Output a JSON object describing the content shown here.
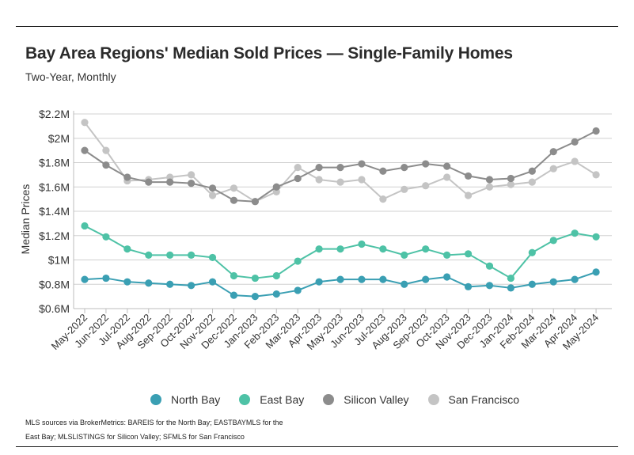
{
  "header": {
    "title": "Bay Area Regions' Median Sold Prices — Single-Family Homes",
    "subtitle": "Two-Year, Monthly"
  },
  "source_note": "MLS sources via BrokerMetrics: BAREIS for the North Bay; EASTBAYMLS for the East Bay; MLSLISTINGS for Silicon Valley; SFMLS for San Francisco",
  "chart_data": {
    "type": "line",
    "title": "Bay Area Regions' Median Sold Prices — Single-Family Homes",
    "subtitle": "Two-Year, Monthly",
    "xlabel": "",
    "ylabel": "Median Prices",
    "ylim": [
      0.6,
      2.2
    ],
    "y_ticks": [
      0.6,
      0.8,
      1.0,
      1.2,
      1.4,
      1.6,
      1.8,
      2.0,
      2.2
    ],
    "y_tick_labels": [
      "$0.6M",
      "$0.8M",
      "$1M",
      "$1.2M",
      "$1.4M",
      "$1.6M",
      "$1.8M",
      "$2M",
      "$2.2M"
    ],
    "y_unit": "millions USD",
    "grid": "horizontal",
    "legend_position": "bottom",
    "categories": [
      "May-2022",
      "Jun-2022",
      "Jul-2022",
      "Aug-2022",
      "Sep-2022",
      "Oct-2022",
      "Nov-2022",
      "Dec-2022",
      "Jan-2023",
      "Feb-2023",
      "Mar-2023",
      "Apr-2023",
      "May-2023",
      "Jun-2023",
      "Jul-2023",
      "Aug-2023",
      "Sep-2023",
      "Oct-2023",
      "Nov-2023",
      "Dec-2023",
      "Jan-2024",
      "Feb-2024",
      "Mar-2024",
      "Apr-2024",
      "May-2024"
    ],
    "series": [
      {
        "name": "North Bay",
        "color": "#3a9fb3",
        "values": [
          0.84,
          0.85,
          0.82,
          0.81,
          0.8,
          0.79,
          0.82,
          0.71,
          0.7,
          0.72,
          0.75,
          0.82,
          0.84,
          0.84,
          0.84,
          0.8,
          0.84,
          0.86,
          0.78,
          0.79,
          0.77,
          0.8,
          0.82,
          0.84,
          0.9
        ]
      },
      {
        "name": "East Bay",
        "color": "#4ec2a6",
        "values": [
          1.28,
          1.19,
          1.09,
          1.04,
          1.04,
          1.04,
          1.02,
          0.87,
          0.85,
          0.87,
          0.99,
          1.09,
          1.09,
          1.13,
          1.09,
          1.04,
          1.09,
          1.04,
          1.05,
          0.95,
          0.85,
          1.06,
          1.16,
          1.22,
          1.19
        ]
      },
      {
        "name": "Silicon Valley",
        "color": "#8c8c8c",
        "values": [
          1.9,
          1.78,
          1.68,
          1.64,
          1.64,
          1.63,
          1.59,
          1.49,
          1.48,
          1.6,
          1.67,
          1.76,
          1.76,
          1.79,
          1.73,
          1.76,
          1.79,
          1.77,
          1.69,
          1.66,
          1.67,
          1.73,
          1.89,
          1.97,
          2.06
        ]
      },
      {
        "name": "San Francisco",
        "color": "#c4c4c4",
        "values": [
          2.13,
          1.9,
          1.65,
          1.66,
          1.68,
          1.7,
          1.53,
          1.59,
          1.48,
          1.56,
          1.76,
          1.66,
          1.64,
          1.66,
          1.5,
          1.58,
          1.61,
          1.68,
          1.53,
          1.6,
          1.62,
          1.64,
          1.75,
          1.81,
          1.7
        ]
      }
    ]
  }
}
